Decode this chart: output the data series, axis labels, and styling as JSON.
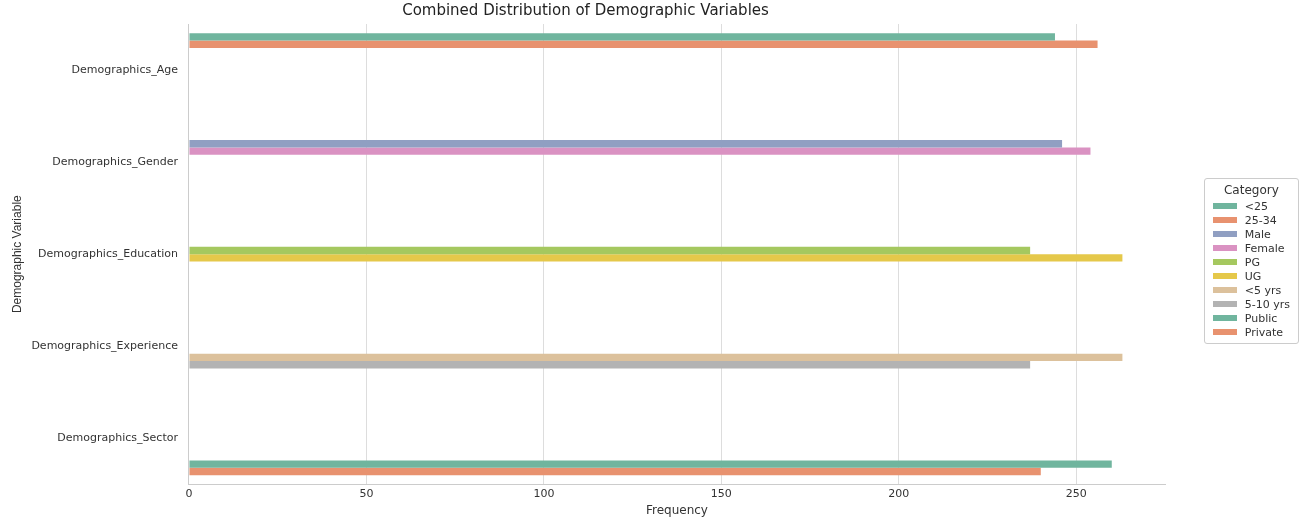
{
  "chart_data": {
    "type": "bar",
    "orientation": "horizontal",
    "title": "Combined Distribution of Demographic Variables",
    "xlabel": "Frequency",
    "ylabel": "Demographic Variable",
    "legend_title": "Category",
    "legend": "right",
    "grid": "x",
    "categories": [
      "Demographics_Age",
      "Demographics_Gender",
      "Demographics_Education",
      "Demographics_Experience",
      "Demographics_Sector"
    ],
    "xlim": [
      0,
      275
    ],
    "xticks": [
      0,
      50,
      100,
      150,
      200,
      250
    ],
    "series": [
      {
        "name": "<25",
        "color": "#70b59e",
        "values": [
          244,
          null,
          null,
          null,
          null
        ]
      },
      {
        "name": "25-34",
        "color": "#e8926f",
        "values": [
          256,
          null,
          null,
          null,
          null
        ]
      },
      {
        "name": "Male",
        "color": "#909fc2",
        "values": [
          null,
          246,
          null,
          null,
          null
        ]
      },
      {
        "name": "Female",
        "color": "#da92c2",
        "values": [
          null,
          254,
          null,
          null,
          null
        ]
      },
      {
        "name": "PG",
        "color": "#a5c85f",
        "values": [
          null,
          null,
          237,
          null,
          null
        ]
      },
      {
        "name": "UG",
        "color": "#e5c84a",
        "values": [
          null,
          null,
          263,
          null,
          null
        ]
      },
      {
        "name": "<5 yrs",
        "color": "#dcc19c",
        "values": [
          null,
          null,
          null,
          263,
          null
        ]
      },
      {
        "name": "5-10 yrs",
        "color": "#b3b3b3",
        "values": [
          null,
          null,
          null,
          237,
          null
        ]
      },
      {
        "name": "Public",
        "color": "#70b59e",
        "values": [
          null,
          null,
          null,
          null,
          260
        ]
      },
      {
        "name": "Private",
        "color": "#e8926f",
        "values": [
          null,
          null,
          null,
          null,
          240
        ]
      }
    ]
  }
}
